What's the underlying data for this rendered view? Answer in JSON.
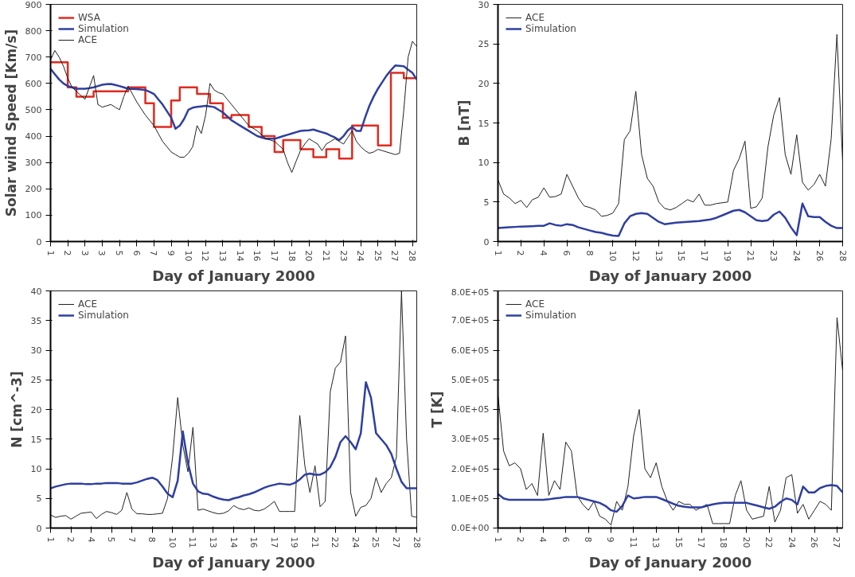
{
  "chart_data": [
    {
      "type": "line",
      "xlabel": "Day of January 2000",
      "ylabel": "Solar wind Speed [Km/s]",
      "legend": "top left",
      "grid": false,
      "ylim": [
        0,
        900
      ],
      "yticks": [
        0,
        100,
        200,
        300,
        400,
        500,
        600,
        700,
        800,
        900
      ],
      "categories": [
        "1",
        null,
        null,
        null,
        "2",
        null,
        null,
        null,
        "3",
        null,
        null,
        null,
        "3",
        null,
        null,
        null,
        "5",
        null,
        null,
        null,
        "6",
        null,
        null,
        null,
        "7",
        null,
        null,
        null,
        "9",
        null,
        null,
        null,
        "10",
        null,
        null,
        null,
        "12",
        null,
        null,
        null,
        "13",
        null,
        null,
        null,
        "14",
        null,
        null,
        null,
        "16",
        null,
        null,
        null,
        "17",
        null,
        null,
        null,
        "18",
        null,
        null,
        null,
        "20",
        null,
        null,
        null,
        "21",
        null,
        null,
        null,
        "23",
        null,
        null,
        null,
        "24",
        null,
        null,
        null,
        "25",
        null,
        null,
        null,
        "27",
        null,
        null,
        null,
        "28",
        null
      ],
      "series": [
        {
          "name": "WSA",
          "type": "step",
          "color": "#e02a1e",
          "values": [
            680,
            680,
            680,
            680,
            585,
            585,
            550,
            550,
            550,
            550,
            570,
            570,
            570,
            570,
            570,
            570,
            570,
            570,
            585,
            585,
            585,
            585,
            525,
            525,
            435,
            435,
            435,
            435,
            535,
            535,
            585,
            585,
            585,
            585,
            560,
            560,
            560,
            525,
            525,
            525,
            470,
            470,
            480,
            480,
            480,
            480,
            435,
            435,
            435,
            400,
            400,
            400,
            340,
            340,
            385,
            385,
            385,
            385,
            350,
            350,
            350,
            320,
            320,
            320,
            350,
            350,
            350,
            315,
            315,
            315,
            440,
            440,
            440,
            440,
            440,
            440,
            365,
            365,
            365,
            640,
            640,
            640,
            620,
            620,
            620,
            620
          ]
        },
        {
          "name": "Simulation",
          "color": "#2e3fa0",
          "values": [
            655,
            635,
            615,
            600,
            590,
            585,
            580,
            580,
            580,
            582,
            585,
            590,
            595,
            597,
            598,
            594,
            590,
            585,
            580,
            579,
            578,
            577,
            575,
            568,
            560,
            540,
            520,
            495,
            470,
            428,
            440,
            465,
            500,
            508,
            511,
            513,
            515,
            513,
            510,
            500,
            490,
            475,
            460,
            450,
            440,
            430,
            420,
            410,
            400,
            395,
            390,
            390,
            390,
            395,
            400,
            405,
            410,
            415,
            420,
            421,
            422,
            425,
            420,
            415,
            410,
            402,
            395,
            385,
            400,
            422,
            435,
            420,
            420,
            470,
            515,
            550,
            580,
            605,
            630,
            650,
            668,
            667,
            665,
            652,
            640,
            615
          ]
        },
        {
          "name": "ACE",
          "color": "#222222",
          "values": [
            690,
            725,
            700,
            665,
            620,
            585,
            570,
            555,
            540,
            585,
            630,
            520,
            510,
            515,
            520,
            510,
            500,
            550,
            590,
            560,
            530,
            505,
            480,
            460,
            440,
            410,
            380,
            360,
            340,
            330,
            320,
            320,
            335,
            360,
            440,
            410,
            480,
            600,
            575,
            565,
            560,
            540,
            520,
            500,
            480,
            460,
            440,
            430,
            420,
            405,
            390,
            385,
            380,
            365,
            350,
            300,
            262,
            305,
            345,
            370,
            390,
            380,
            370,
            345,
            370,
            380,
            390,
            380,
            370,
            395,
            420,
            380,
            360,
            345,
            335,
            340,
            350,
            345,
            340,
            335,
            330,
            335,
            500,
            700,
            760,
            740
          ]
        }
      ]
    },
    {
      "type": "line",
      "xlabel": "Day of January 2000",
      "ylabel": "B [nT]",
      "legend": "top left",
      "grid": false,
      "ylim": [
        0,
        30
      ],
      "yticks": [
        0,
        5,
        10,
        15,
        20,
        25,
        30
      ],
      "categories": [
        "1",
        null,
        null,
        null,
        "2",
        null,
        null,
        null,
        "4",
        null,
        null,
        null,
        "6",
        null,
        null,
        null,
        "8",
        null,
        null,
        null,
        "10",
        null,
        null,
        null,
        "12",
        null,
        null,
        null,
        "13",
        null,
        null,
        null,
        "15",
        null,
        null,
        null,
        "17",
        null,
        null,
        null,
        "19",
        null,
        null,
        null,
        "21",
        null,
        null,
        null,
        "23",
        null,
        null,
        null,
        "24",
        null,
        null,
        null,
        "26",
        null,
        null,
        null,
        "28"
      ],
      "series": [
        {
          "name": "ACE",
          "color": "#222222",
          "values": [
            7.8,
            6.0,
            5.5,
            4.8,
            5.2,
            4.3,
            5.3,
            5.6,
            6.8,
            5.6,
            5.7,
            6.0,
            8.5,
            7.0,
            5.5,
            4.5,
            4.3,
            4.0,
            3.2,
            3.3,
            3.6,
            4.8,
            12.9,
            14,
            19,
            11,
            8,
            7.0,
            5.0,
            4.2,
            4.0,
            4.3,
            4.8,
            5.3,
            5.0,
            6.0,
            4.6,
            4.6,
            4.8,
            4.9,
            5.0,
            9.0,
            10.5,
            12.7,
            4.2,
            4.4,
            5.5,
            12,
            16,
            18.2,
            11,
            8.5,
            13.5,
            7.5,
            6.5,
            7.2,
            8.5,
            7.0,
            13,
            26.2,
            10
          ]
        },
        {
          "name": "Simulation",
          "color": "#2e3fa0",
          "values": [
            1.7,
            1.75,
            1.8,
            1.85,
            1.9,
            1.92,
            1.95,
            1.98,
            2.0,
            2.3,
            2.1,
            2.0,
            2.2,
            2.1,
            1.8,
            1.6,
            1.4,
            1.2,
            1.1,
            0.9,
            0.75,
            0.7,
            2.3,
            3.2,
            3.5,
            3.6,
            3.5,
            3.0,
            2.5,
            2.2,
            2.3,
            2.4,
            2.45,
            2.5,
            2.55,
            2.6,
            2.7,
            2.8,
            3.0,
            3.3,
            3.6,
            3.9,
            4.0,
            3.7,
            3.2,
            2.7,
            2.6,
            2.7,
            3.4,
            3.8,
            3.0,
            1.8,
            0.8,
            4.8,
            3.2,
            3.1,
            3.1,
            2.5,
            2.0,
            1.7,
            1.7
          ]
        }
      ]
    },
    {
      "type": "line",
      "xlabel": "Day of January 2000",
      "ylabel": "N [cm^-3]",
      "legend": "top left",
      "grid": false,
      "ylim": [
        0,
        40
      ],
      "yticks": [
        0,
        5,
        10,
        15,
        20,
        25,
        30,
        35,
        40
      ],
      "categories": [
        "1",
        null,
        null,
        null,
        "2",
        null,
        null,
        null,
        "4",
        null,
        null,
        null,
        "5",
        null,
        null,
        null,
        "7",
        null,
        null,
        null,
        "8",
        null,
        null,
        null,
        "10",
        null,
        null,
        null,
        "11",
        null,
        null,
        null,
        "13",
        null,
        null,
        null,
        "14",
        null,
        null,
        null,
        "16",
        null,
        null,
        null,
        "17",
        null,
        null,
        null,
        "19",
        null,
        null,
        null,
        "21",
        null,
        null,
        null,
        "22",
        null,
        null,
        null,
        "24",
        null,
        null,
        null,
        "25",
        null,
        null,
        null,
        "27",
        null,
        null,
        null,
        "28"
      ],
      "series": [
        {
          "name": "ACE",
          "color": "#222222",
          "values": [
            2.2,
            1.8,
            2.0,
            2.1,
            1.5,
            2.0,
            2.5,
            2.6,
            2.7,
            1.6,
            2.3,
            2.8,
            2.6,
            2.3,
            3.0,
            6.0,
            3.2,
            2.4,
            2.4,
            2.3,
            2.3,
            2.4,
            2.5,
            5,
            12,
            22,
            14,
            9.5,
            17,
            3,
            3.2,
            2.9,
            2.6,
            2.4,
            2.5,
            2.9,
            3.8,
            3.3,
            3.1,
            3.4,
            3.0,
            2.9,
            3.2,
            3.8,
            4.5,
            2.8,
            2.8,
            2.8,
            2.8,
            19,
            10.5,
            6,
            10.5,
            3.6,
            4.5,
            23,
            27,
            28,
            32.4,
            6,
            2,
            3.5,
            3.8,
            5,
            8.5,
            6,
            7.5,
            8.5,
            12,
            40,
            15,
            2,
            1.8
          ]
        },
        {
          "name": "Simulation",
          "color": "#2e3fa0",
          "values": [
            6.7,
            7.0,
            7.2,
            7.4,
            7.5,
            7.5,
            7.5,
            7.4,
            7.4,
            7.5,
            7.5,
            7.6,
            7.6,
            7.6,
            7.5,
            7.5,
            7.5,
            7.7,
            8.0,
            8.3,
            8.5,
            8.1,
            7.0,
            5.8,
            5.2,
            8,
            16.3,
            11,
            7.5,
            6.2,
            5.8,
            5.7,
            5.3,
            5.0,
            4.8,
            4.7,
            5.0,
            5.2,
            5.5,
            5.7,
            6.0,
            6.4,
            6.8,
            7.1,
            7.3,
            7.5,
            7.4,
            7.3,
            7.6,
            8.2,
            9.0,
            9.2,
            9.0,
            9.0,
            9.4,
            10.3,
            12,
            14.5,
            15.5,
            14.5,
            13.3,
            16,
            24.6,
            22,
            16,
            15,
            14,
            12.5,
            10,
            7.8,
            6.7,
            6.7,
            6.7
          ]
        }
      ]
    },
    {
      "type": "line",
      "xlabel": "Day of January 2000",
      "ylabel": "T [K]",
      "legend": "top left",
      "grid": false,
      "ylim": [
        0,
        800000
      ],
      "yticks": [
        {
          "value": 0,
          "label": "0.0E+00"
        },
        {
          "value": 100000,
          "label": "1.0E+05"
        },
        {
          "value": 200000,
          "label": "2.0E+05"
        },
        {
          "value": 300000,
          "label": "3.0E+05"
        },
        {
          "value": 400000,
          "label": "4.0E+05"
        },
        {
          "value": 500000,
          "label": "5.0E+05"
        },
        {
          "value": 600000,
          "label": "6.0E+05"
        },
        {
          "value": 700000,
          "label": "7.0E+05"
        },
        {
          "value": 800000,
          "label": "8.0E+05"
        }
      ],
      "categories": [
        "1",
        null,
        null,
        null,
        "2",
        null,
        null,
        null,
        "4",
        null,
        null,
        null,
        "6",
        null,
        null,
        null,
        "8",
        null,
        null,
        null,
        "9",
        null,
        null,
        null,
        "11",
        null,
        null,
        null,
        "13",
        null,
        null,
        null,
        "15",
        null,
        null,
        null,
        "17",
        null,
        null,
        null,
        "18",
        null,
        null,
        null,
        "20",
        null,
        null,
        null,
        "22",
        null,
        null,
        null,
        "24",
        null,
        null,
        null,
        "26",
        null,
        null,
        null,
        "27",
        null
      ],
      "series": [
        {
          "name": "ACE",
          "color": "#222222",
          "values": [
            450000,
            260000,
            210000,
            220000,
            200000,
            130000,
            150000,
            110000,
            320000,
            110000,
            160000,
            130000,
            290000,
            260000,
            110000,
            80000,
            60000,
            90000,
            40000,
            30000,
            10000,
            90000,
            60000,
            140000,
            310000,
            400000,
            200000,
            170000,
            220000,
            140000,
            90000,
            60000,
            90000,
            80000,
            80000,
            60000,
            70000,
            80000,
            15000,
            15000,
            15000,
            15000,
            110000,
            160000,
            60000,
            30000,
            35000,
            40000,
            140000,
            20000,
            60000,
            170000,
            180000,
            50000,
            80000,
            30000,
            60000,
            90000,
            80000,
            60000,
            710000,
            530000
          ]
        },
        {
          "name": "Simulation",
          "color": "#2e3fa0",
          "values": [
            115000,
            100000,
            95000,
            95000,
            95000,
            95000,
            95000,
            95000,
            95000,
            97000,
            100000,
            102000,
            105000,
            105000,
            105000,
            100000,
            95000,
            90000,
            85000,
            75000,
            60000,
            55000,
            75000,
            110000,
            100000,
            102000,
            105000,
            105000,
            105000,
            98000,
            90000,
            82000,
            75000,
            72000,
            70000,
            70000,
            70000,
            75000,
            80000,
            83000,
            85000,
            85000,
            85000,
            85000,
            85000,
            80000,
            75000,
            70000,
            65000,
            72000,
            88000,
            100000,
            95000,
            80000,
            140000,
            120000,
            120000,
            135000,
            142000,
            145000,
            142000,
            120000
          ]
        }
      ]
    }
  ]
}
